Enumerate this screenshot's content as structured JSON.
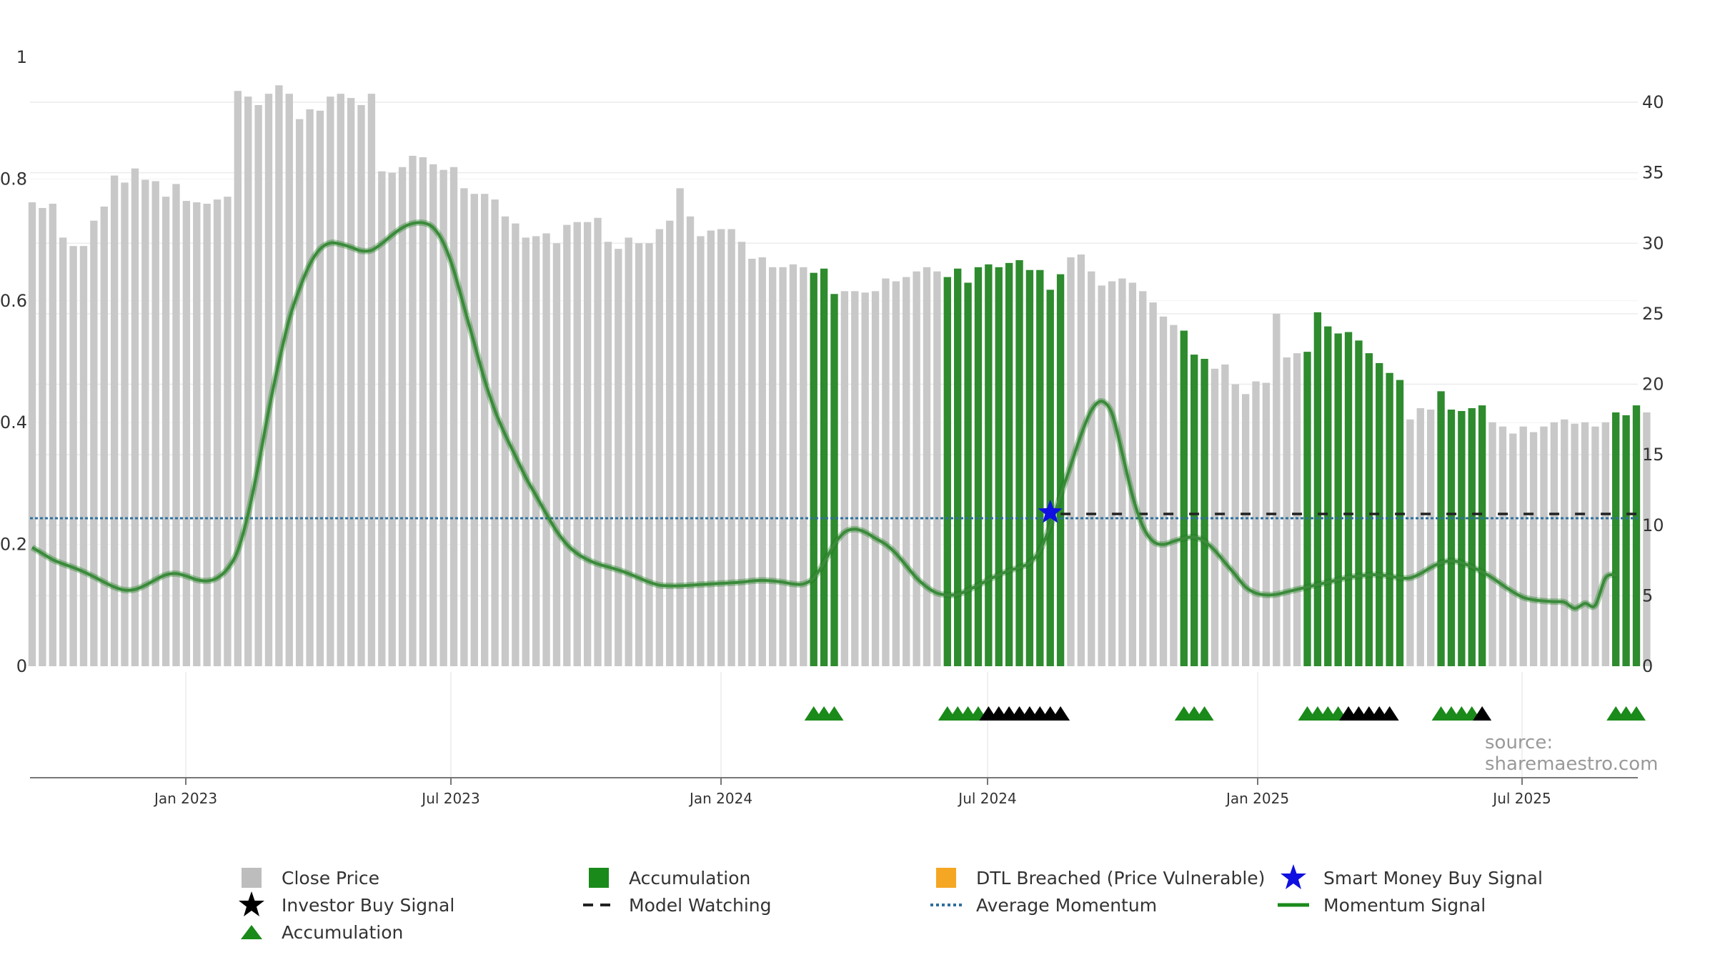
{
  "colors": {
    "price_bar": "#c8c8c8",
    "accumulation_bar": "#2e8b2e",
    "momentum_line": "#3a8a3a",
    "average_momentum": "#2e6f9e",
    "model_watching": "#222222",
    "accumulation_marker": "#1a8a1a",
    "investor_marker": "#000000",
    "smart_money_marker": "#1010e0",
    "dtl_breached": "#f5a623"
  },
  "watermark": "source: sharemaestro.com",
  "legend": [
    {
      "key": "close_price",
      "label": "Close Price",
      "symbol": "grey-square-icon"
    },
    {
      "key": "accumulation_bar",
      "label": "Accumulation",
      "symbol": "green-square-icon"
    },
    {
      "key": "dtl",
      "label": "DTL Breached (Price Vulnerable)",
      "symbol": "orange-square-icon"
    },
    {
      "key": "smart_money",
      "label": "Smart Money Buy Signal",
      "symbol": "blue-star-icon"
    },
    {
      "key": "investor",
      "label": "Investor Buy Signal",
      "symbol": "black-star-icon"
    },
    {
      "key": "model_watching",
      "label": "Model Watching",
      "symbol": "dashed-line-icon"
    },
    {
      "key": "avg_momentum",
      "label": "Average Momentum",
      "symbol": "dotted-line-icon"
    },
    {
      "key": "momentum",
      "label": "Momentum Signal",
      "symbol": "green-line-icon"
    },
    {
      "key": "accumulation_marker",
      "label": "Accumulation",
      "symbol": "green-triangle-icon"
    }
  ],
  "chart_data": {
    "type": "bar",
    "title": "",
    "x_ticks": [
      "Jan 2023",
      "Jul 2023",
      "Jan 2024",
      "Jul 2024",
      "Jan 2025",
      "Jul 2025"
    ],
    "left_axis": {
      "ticks": [
        "0",
        "0.2",
        "0.4",
        "0.6",
        "0.8",
        "1"
      ],
      "ylim": [
        0,
        1
      ]
    },
    "right_axis": {
      "ticks": [
        "0",
        "5",
        "10",
        "15",
        "20",
        "25",
        "30",
        "35",
        "40"
      ],
      "ylim": [
        0,
        43
      ]
    },
    "weeks": 157,
    "close_price": [
      32.9,
      32.5,
      32.8,
      30.4,
      29.8,
      29.8,
      31.6,
      32.6,
      34.8,
      34.3,
      35.3,
      34.5,
      34.4,
      33.3,
      34.2,
      33.0,
      32.9,
      32.8,
      33.1,
      33.3,
      40.8,
      40.4,
      39.8,
      40.6,
      41.2,
      40.6,
      38.8,
      39.5,
      39.4,
      40.4,
      40.6,
      40.3,
      39.8,
      40.6,
      35.1,
      35.0,
      35.4,
      36.2,
      36.1,
      35.6,
      35.2,
      35.4,
      33.9,
      33.5,
      33.5,
      33.1,
      31.9,
      31.4,
      30.4,
      30.5,
      30.7,
      30.0,
      31.3,
      31.5,
      31.5,
      31.8,
      30.1,
      29.6,
      30.4,
      30.0,
      30.0,
      31.0,
      31.6,
      33.9,
      31.9,
      30.5,
      30.9,
      31.0,
      31.0,
      30.1,
      28.9,
      29.0,
      28.3,
      28.3,
      28.5,
      28.3,
      27.9,
      28.2,
      26.4,
      26.6,
      26.6,
      26.5,
      26.6,
      27.5,
      27.3,
      27.6,
      28.0,
      28.3,
      28.0,
      27.6,
      28.2,
      27.2,
      28.3,
      28.5,
      28.3,
      28.6,
      28.8,
      28.1,
      28.1,
      26.7,
      27.8,
      29.0,
      29.2,
      28.0,
      27.0,
      27.3,
      27.5,
      27.2,
      26.6,
      25.8,
      24.8,
      24.2,
      23.8,
      22.1,
      21.8,
      21.1,
      21.4,
      20.0,
      19.3,
      20.2,
      20.1,
      25.0,
      21.9,
      22.2,
      22.3,
      25.1,
      24.1,
      23.6,
      23.7,
      23.1,
      22.2,
      21.5,
      20.8,
      20.3,
      17.5,
      18.3,
      18.2,
      19.5,
      18.2,
      18.1,
      18.3,
      18.5,
      17.3,
      17.0,
      16.5,
      17.0,
      16.6,
      17.0,
      17.3,
      17.5,
      17.2,
      17.3,
      17.0,
      17.3,
      18.0,
      17.8,
      18.5,
      18.0
    ],
    "accumulation_bar_weeks": [
      [
        76,
        78
      ],
      [
        89,
        100
      ],
      [
        112,
        114
      ],
      [
        124,
        133
      ],
      [
        137,
        141
      ],
      [
        154,
        156
      ]
    ],
    "momentum": [
      0.195,
      0.185,
      0.175,
      0.168,
      0.162,
      0.155,
      0.147,
      0.138,
      0.13,
      0.125,
      0.126,
      0.133,
      0.142,
      0.15,
      0.152,
      0.148,
      0.142,
      0.14,
      0.145,
      0.16,
      0.19,
      0.25,
      0.33,
      0.42,
      0.5,
      0.57,
      0.62,
      0.66,
      0.685,
      0.695,
      0.693,
      0.688,
      0.682,
      0.683,
      0.694,
      0.708,
      0.72,
      0.727,
      0.728,
      0.72,
      0.695,
      0.65,
      0.59,
      0.53,
      0.47,
      0.42,
      0.38,
      0.345,
      0.31,
      0.28,
      0.25,
      0.222,
      0.2,
      0.185,
      0.175,
      0.168,
      0.163,
      0.158,
      0.152,
      0.145,
      0.138,
      0.133,
      0.132,
      0.132,
      0.133,
      0.134,
      0.135,
      0.136,
      0.137,
      0.138,
      0.14,
      0.141,
      0.14,
      0.138,
      0.135,
      0.135,
      0.145,
      0.17,
      0.2,
      0.22,
      0.225,
      0.22,
      0.21,
      0.2,
      0.185,
      0.165,
      0.145,
      0.13,
      0.12,
      0.117,
      0.118,
      0.125,
      0.133,
      0.142,
      0.15,
      0.157,
      0.162,
      0.17,
      0.19,
      0.23,
      0.28,
      0.33,
      0.38,
      0.42,
      0.435,
      0.415,
      0.35,
      0.28,
      0.23,
      0.205,
      0.2,
      0.205,
      0.21,
      0.212,
      0.205,
      0.19,
      0.17,
      0.15,
      0.13,
      0.12,
      0.117,
      0.118,
      0.122,
      0.126,
      0.13,
      0.134,
      0.138,
      0.142,
      0.146,
      0.148,
      0.15,
      0.15,
      0.148,
      0.145,
      0.145,
      0.152,
      0.162,
      0.17,
      0.173,
      0.17,
      0.163,
      0.155,
      0.145,
      0.133,
      0.122,
      0.113,
      0.109,
      0.107,
      0.106,
      0.105,
      0.095,
      0.103,
      0.1,
      0.145,
      0.15
    ],
    "average_momentum": 0.243,
    "model_watching": {
      "start_week": 100,
      "end_week": 156,
      "value": 0.25
    },
    "smart_money_signal": {
      "week": 99,
      "value": 0.25
    },
    "accumulation_markers": [
      76,
      77,
      78,
      89,
      90,
      91,
      92,
      112,
      113,
      114,
      124,
      125,
      126,
      127,
      137,
      138,
      139,
      140,
      154,
      155,
      156
    ],
    "investor_markers": [
      93,
      94,
      95,
      96,
      97,
      98,
      99,
      100,
      128,
      129,
      130,
      131,
      132,
      141
    ]
  }
}
